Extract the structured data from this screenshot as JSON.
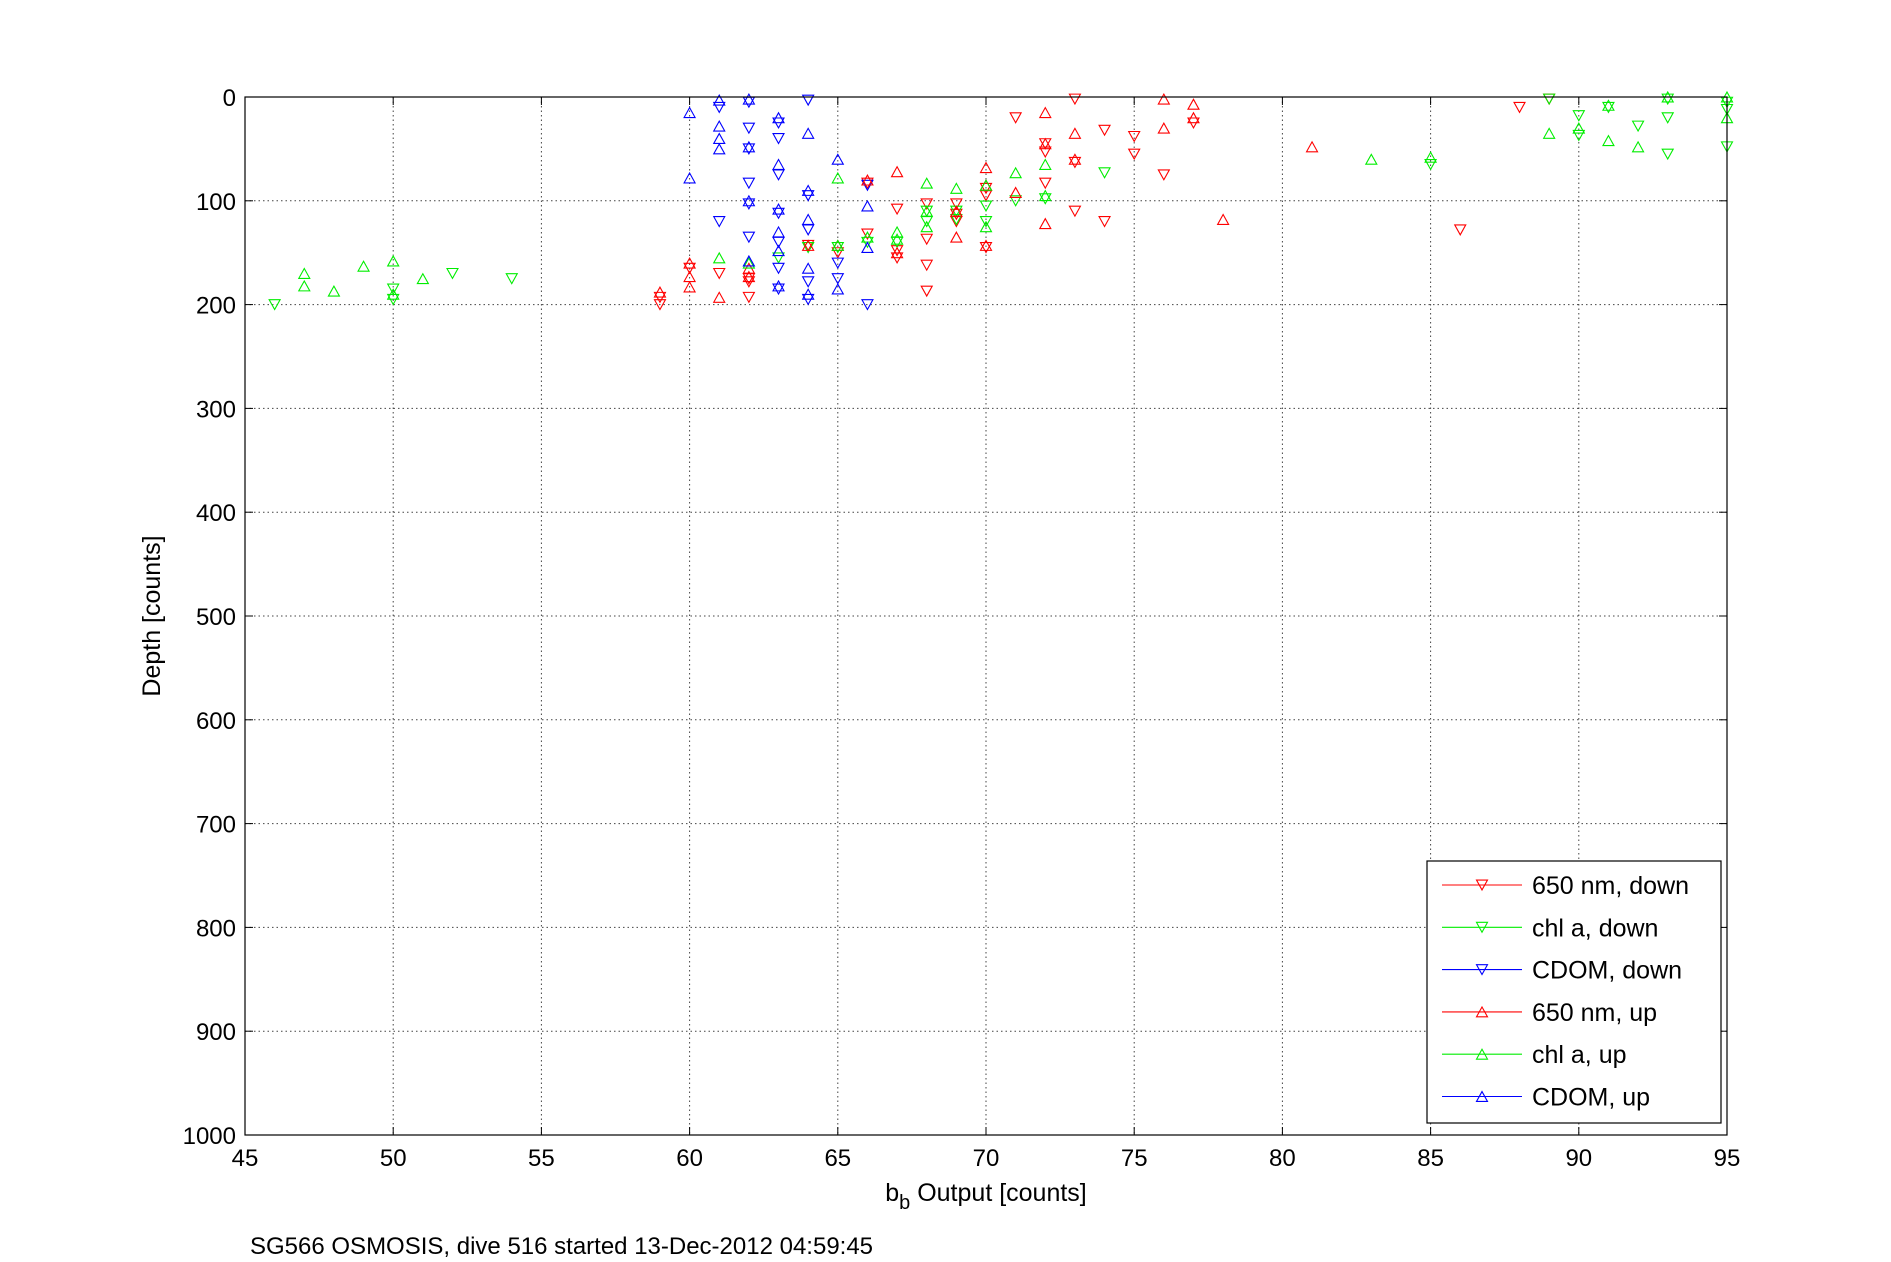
{
  "chart_data": {
    "type": "scatter",
    "xlabel_main": "b",
    "xlabel_sub": "b",
    "xlabel_rest": " Output [counts]",
    "ylabel": "Depth [counts]",
    "caption": "SG566 OSMOSIS, dive 516 started 13-Dec-2012 04:59:45",
    "xlim": [
      45,
      95
    ],
    "ylim": [
      0,
      1000
    ],
    "y_reversed": true,
    "grid": true,
    "grid_style": "dotted",
    "legend_position": "bottom-right",
    "x_ticks": [
      "45",
      "50",
      "55",
      "60",
      "65",
      "70",
      "75",
      "80",
      "85",
      "90",
      "95"
    ],
    "y_ticks": [
      "0",
      "100",
      "200",
      "300",
      "400",
      "500",
      "600",
      "700",
      "800",
      "900",
      "1000"
    ],
    "series": [
      {
        "name": "650 nm, down",
        "color": "#ff0000",
        "marker": "triangle-down",
        "points": [
          [
            59,
            200
          ],
          [
            59,
            193
          ],
          [
            60,
            165
          ],
          [
            61,
            170
          ],
          [
            62,
            175
          ],
          [
            62,
            193
          ],
          [
            62,
            178
          ],
          [
            64,
            143
          ],
          [
            65,
            150
          ],
          [
            66,
            132
          ],
          [
            66,
            83
          ],
          [
            67,
            108
          ],
          [
            67,
            148
          ],
          [
            67,
            155
          ],
          [
            68,
            187
          ],
          [
            68,
            162
          ],
          [
            68,
            137
          ],
          [
            68,
            103
          ],
          [
            69,
            103
          ],
          [
            69,
            113
          ],
          [
            69,
            120
          ],
          [
            70,
            145
          ],
          [
            70,
            88
          ],
          [
            70,
            95
          ],
          [
            71,
            20
          ],
          [
            72,
            83
          ],
          [
            72,
            53
          ],
          [
            72,
            45
          ],
          [
            73,
            2
          ],
          [
            73,
            63
          ],
          [
            73,
            110
          ],
          [
            74,
            32
          ],
          [
            74,
            120
          ],
          [
            75,
            55
          ],
          [
            75,
            38
          ],
          [
            76,
            75
          ],
          [
            77,
            25
          ],
          [
            88,
            10
          ],
          [
            86,
            128
          ],
          [
            89,
            2
          ]
        ]
      },
      {
        "name": "chl a, down",
        "color": "#00ee00",
        "marker": "triangle-down",
        "points": [
          [
            46,
            200
          ],
          [
            50,
            185
          ],
          [
            50,
            195
          ],
          [
            52,
            170
          ],
          [
            54,
            175
          ],
          [
            63,
            155
          ],
          [
            64,
            145
          ],
          [
            65,
            145
          ],
          [
            66,
            140
          ],
          [
            67,
            140
          ],
          [
            68,
            120
          ],
          [
            68,
            110
          ],
          [
            69,
            110
          ],
          [
            69,
            118
          ],
          [
            70,
            120
          ],
          [
            70,
            105
          ],
          [
            71,
            100
          ],
          [
            72,
            98
          ],
          [
            74,
            73
          ],
          [
            85,
            65
          ],
          [
            89,
            2
          ],
          [
            90,
            18
          ],
          [
            90,
            37
          ],
          [
            91,
            10
          ],
          [
            92,
            28
          ],
          [
            93,
            20
          ],
          [
            93,
            55
          ],
          [
            93,
            2
          ],
          [
            95,
            5
          ],
          [
            95,
            12
          ],
          [
            95,
            48
          ]
        ]
      },
      {
        "name": "CDOM, down",
        "color": "#0000ff",
        "marker": "triangle-down",
        "points": [
          [
            61,
            120
          ],
          [
            61,
            10
          ],
          [
            62,
            5
          ],
          [
            62,
            30
          ],
          [
            62,
            50
          ],
          [
            62,
            83
          ],
          [
            62,
            103
          ],
          [
            62,
            135
          ],
          [
            63,
            25
          ],
          [
            63,
            40
          ],
          [
            63,
            75
          ],
          [
            63,
            112
          ],
          [
            63,
            140
          ],
          [
            63,
            165
          ],
          [
            63,
            185
          ],
          [
            64,
            3
          ],
          [
            64,
            95
          ],
          [
            64,
            128
          ],
          [
            64,
            178
          ],
          [
            64,
            195
          ],
          [
            65,
            160
          ],
          [
            65,
            175
          ],
          [
            66,
            85
          ],
          [
            66,
            200
          ]
        ]
      },
      {
        "name": "650 nm, up",
        "color": "#ff0000",
        "marker": "triangle-up",
        "points": [
          [
            59,
            188
          ],
          [
            60,
            160
          ],
          [
            60,
            173
          ],
          [
            60,
            183
          ],
          [
            61,
            193
          ],
          [
            62,
            165
          ],
          [
            62,
            173
          ],
          [
            64,
            143
          ],
          [
            65,
            143
          ],
          [
            66,
            80
          ],
          [
            67,
            72
          ],
          [
            67,
            150
          ],
          [
            69,
            110
          ],
          [
            69,
            135
          ],
          [
            70,
            68
          ],
          [
            70,
            85
          ],
          [
            70,
            143
          ],
          [
            71,
            92
          ],
          [
            72,
            15
          ],
          [
            72,
            45
          ],
          [
            72,
            122
          ],
          [
            73,
            35
          ],
          [
            73,
            60
          ],
          [
            76,
            2
          ],
          [
            76,
            30
          ],
          [
            77,
            7
          ],
          [
            77,
            20
          ],
          [
            78,
            118
          ],
          [
            81,
            48
          ]
        ]
      },
      {
        "name": "chl a, up",
        "color": "#00ee00",
        "marker": "triangle-up",
        "points": [
          [
            47,
            170
          ],
          [
            47,
            182
          ],
          [
            48,
            187
          ],
          [
            49,
            163
          ],
          [
            50,
            158
          ],
          [
            50,
            190
          ],
          [
            51,
            175
          ],
          [
            61,
            155
          ],
          [
            62,
            160
          ],
          [
            65,
            78
          ],
          [
            65,
            143
          ],
          [
            66,
            135
          ],
          [
            67,
            130
          ],
          [
            67,
            137
          ],
          [
            68,
            83
          ],
          [
            68,
            110
          ],
          [
            68,
            125
          ],
          [
            69,
            88
          ],
          [
            70,
            85
          ],
          [
            70,
            125
          ],
          [
            71,
            73
          ],
          [
            72,
            65
          ],
          [
            72,
            95
          ],
          [
            83,
            60
          ],
          [
            85,
            58
          ],
          [
            89,
            35
          ],
          [
            90,
            30
          ],
          [
            91,
            8
          ],
          [
            91,
            42
          ],
          [
            92,
            48
          ],
          [
            93,
            0
          ],
          [
            95,
            20
          ],
          [
            95,
            0
          ]
        ]
      },
      {
        "name": "CDOM, up",
        "color": "#0000ff",
        "marker": "triangle-up",
        "points": [
          [
            60,
            15
          ],
          [
            60,
            78
          ],
          [
            61,
            3
          ],
          [
            61,
            28
          ],
          [
            61,
            40
          ],
          [
            61,
            50
          ],
          [
            62,
            2
          ],
          [
            62,
            48
          ],
          [
            62,
            100
          ],
          [
            62,
            158
          ],
          [
            63,
            20
          ],
          [
            63,
            65
          ],
          [
            63,
            108
          ],
          [
            63,
            130
          ],
          [
            63,
            148
          ],
          [
            63,
            182
          ],
          [
            64,
            35
          ],
          [
            64,
            90
          ],
          [
            64,
            118
          ],
          [
            64,
            165
          ],
          [
            64,
            190
          ],
          [
            65,
            60
          ],
          [
            65,
            185
          ],
          [
            66,
            145
          ],
          [
            66,
            105
          ]
        ]
      }
    ]
  }
}
